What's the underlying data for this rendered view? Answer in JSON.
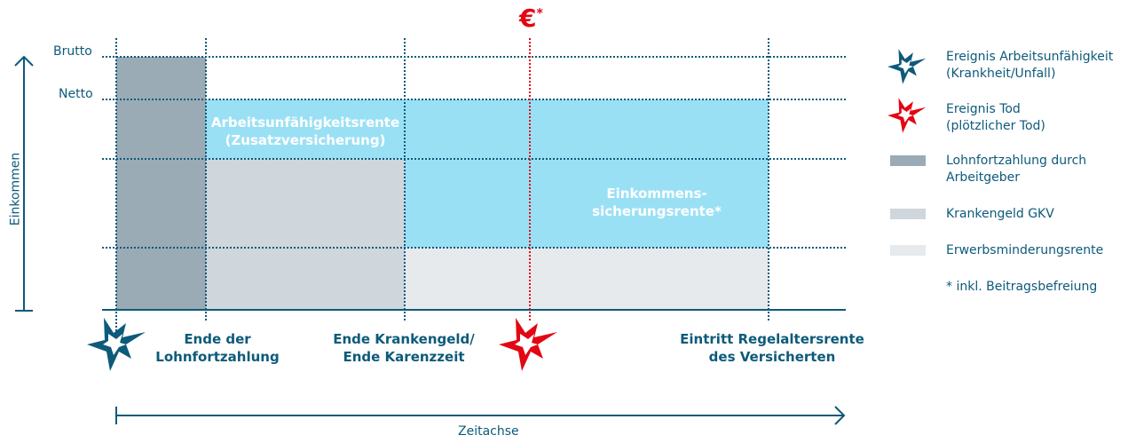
{
  "axes": {
    "y_label": "Einkommen",
    "x_label": "Zeitachse",
    "levels": {
      "brutto": "Brutto",
      "netto": "Netto"
    }
  },
  "top_marker": {
    "symbol": "€",
    "sup": "*"
  },
  "blocks": {
    "arbeitsunfaehigkeitsrente": [
      "Arbeitsunfähigkeitsrente",
      "(Zusatzversicherung)"
    ],
    "einkommenssicherungsrente": [
      "Einkommens-",
      "sicherungsrente*"
    ]
  },
  "milestones": [
    {
      "lines": [
        "Ende der",
        "Lohnfortzahlung"
      ]
    },
    {
      "lines": [
        "Ende Krankengeld/",
        "Ende Karenzzeit"
      ]
    },
    {
      "lines": [
        "Eintritt Regelaltersrente",
        "des Versicherten"
      ]
    }
  ],
  "legend": [
    {
      "icon": "star-burst-icon",
      "color": "#0d5a7a",
      "lines": [
        "Ereignis Arbeitsunfähigkeit",
        "(Krankheit/Unfall)"
      ]
    },
    {
      "icon": "star-burst-icon",
      "color": "#e30613",
      "lines": [
        "Ereignis Tod",
        "(plötzlicher Tod)"
      ]
    },
    {
      "swatch": "#9aabb6",
      "lines": [
        "Lohnfortzahlung durch",
        "Arbeitgeber"
      ]
    },
    {
      "swatch": "#cfd6dc",
      "lines": [
        "Krankengeld GKV"
      ]
    },
    {
      "swatch": "#e6eaed",
      "lines": [
        "Erwerbsminderungsrente"
      ]
    },
    {
      "lines": [
        "* inkl. Beitragsbefreiung"
      ]
    }
  ],
  "colors": {
    "primary": "#0d5a7a",
    "accent": "#e30613",
    "cyan": "#9ae0f5"
  }
}
